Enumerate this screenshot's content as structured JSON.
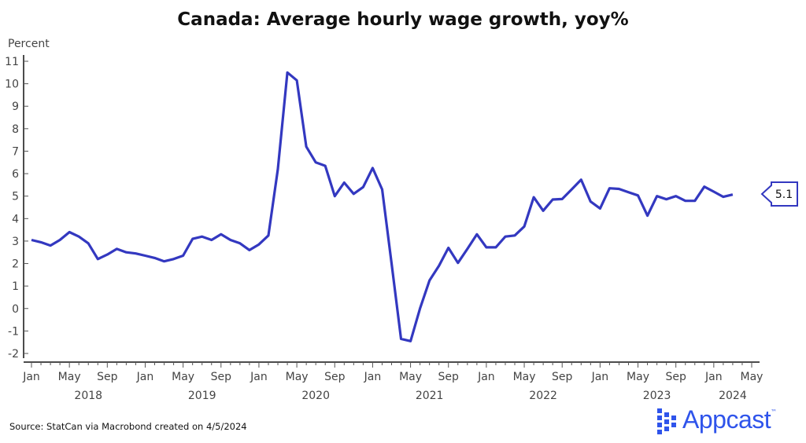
{
  "chart_data": {
    "type": "line",
    "title": "Canada: Average hourly wage growth, yoy%",
    "ylabel": "Percent",
    "xlabel": "",
    "ylim": [
      -2,
      11
    ],
    "yticks": [
      -2,
      -1,
      0,
      1,
      2,
      3,
      4,
      5,
      6,
      7,
      8,
      9,
      10,
      11
    ],
    "x_start": "2018-01",
    "x_end": "2024-05",
    "xtick_months": [
      "Jan",
      "May",
      "Sep",
      "Jan",
      "May",
      "Sep",
      "Jan",
      "May",
      "Sep",
      "Jan",
      "May",
      "Sep",
      "Jan",
      "May",
      "Sep",
      "Jan",
      "May",
      "Sep",
      "Jan",
      "May"
    ],
    "year_labels": [
      "2018",
      "2019",
      "2020",
      "2021",
      "2022",
      "2023",
      "2024"
    ],
    "grid": false,
    "series": [
      {
        "name": "Average hourly wage growth",
        "color": "#3338c0",
        "start": "2018-01",
        "values": [
          3.05,
          2.95,
          2.8,
          3.05,
          3.4,
          3.2,
          2.9,
          2.2,
          2.4,
          2.65,
          2.5,
          2.45,
          2.35,
          2.25,
          2.1,
          2.2,
          2.35,
          3.1,
          3.2,
          3.05,
          3.3,
          3.05,
          2.9,
          2.6,
          2.85,
          3.25,
          6.2,
          10.5,
          10.15,
          7.2,
          6.5,
          6.35,
          5.0,
          5.6,
          5.1,
          5.4,
          6.25,
          5.3,
          2.0,
          -1.35,
          -1.45,
          0.0,
          1.25,
          1.9,
          2.7,
          2.03,
          2.65,
          3.3,
          2.72,
          2.72,
          3.2,
          3.25,
          3.65,
          4.95,
          4.35,
          4.85,
          4.87,
          5.3,
          5.73,
          4.76,
          4.45,
          5.35,
          5.32,
          5.17,
          5.03,
          4.13,
          5.0,
          4.86,
          5.0,
          4.79,
          4.79,
          5.42,
          5.2,
          4.97,
          5.07
        ]
      }
    ],
    "last_value_label": "5.1"
  },
  "source": "Source: StatCan via Macrobond created on 4/5/2024",
  "logo": {
    "text": "Appcast",
    "tm": "™",
    "color": "#2f54eb"
  }
}
